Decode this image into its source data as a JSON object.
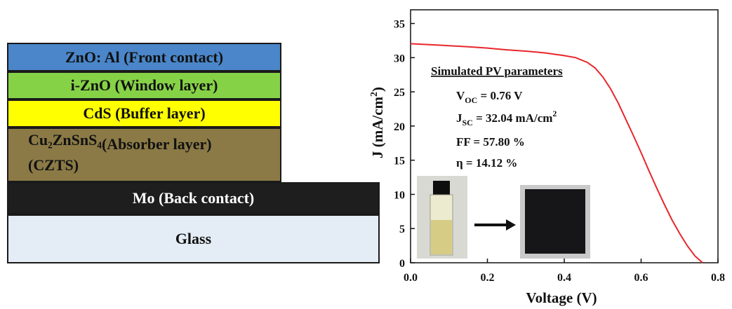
{
  "stack": {
    "front": "ZnO: Al (Front contact)",
    "window": "i-ZnO (Window layer)",
    "buffer": "CdS (Buffer layer)",
    "absorber_formula": "Cu₂ZnSnS₄",
    "absorber_label": "(Absorber layer)",
    "absorber_abbrev": "(CZTS)",
    "back": "Mo (Back contact)",
    "glass": "Glass"
  },
  "colors": {
    "front": "#4a86c9",
    "window": "#86d247",
    "buffer": "#ffff00",
    "absorber": "#8b7a46",
    "back": "#1e1e1e",
    "glass": "#e4edf6",
    "curve": "#e8262b"
  },
  "chart_data": {
    "type": "line",
    "xlabel": "Voltage (V)",
    "ylabel_main": "J (mA/cm",
    "ylabel_sup": "2",
    "ylabel_tail": ")",
    "xlim": [
      0.0,
      0.8
    ],
    "ylim": [
      0,
      37
    ],
    "xticks": [
      0.0,
      0.2,
      0.4,
      0.6,
      0.8
    ],
    "xtick_labels": [
      "0.0",
      "0.2",
      "0.4",
      "0.6",
      "0.8"
    ],
    "yticks": [
      0,
      5,
      10,
      15,
      20,
      25,
      30,
      35
    ],
    "ytick_labels": [
      "0",
      "5",
      "10",
      "15",
      "20",
      "25",
      "30",
      "35"
    ],
    "grid": false,
    "series": [
      {
        "x": [
          0.0,
          0.05,
          0.1,
          0.15,
          0.2,
          0.25,
          0.3,
          0.35,
          0.4,
          0.43,
          0.46,
          0.48,
          0.5,
          0.52,
          0.54,
          0.56,
          0.58,
          0.6,
          0.62,
          0.64,
          0.66,
          0.68,
          0.7,
          0.72,
          0.74,
          0.76
        ],
        "y": [
          32.04,
          31.9,
          31.75,
          31.6,
          31.4,
          31.15,
          30.95,
          30.7,
          30.3,
          30.0,
          29.3,
          28.5,
          27.2,
          25.5,
          23.4,
          21.0,
          18.6,
          16.1,
          13.5,
          11.0,
          8.6,
          6.3,
          4.3,
          2.5,
          1.0,
          0.0
        ]
      }
    ],
    "annotations": {
      "title": "Simulated PV parameters",
      "voc": {
        "main": "V",
        "sub": "OC",
        "rest": " = 0.76 V"
      },
      "jsc": {
        "main": "J",
        "sub": "SC",
        "rest": " = 32.04 mA/cm",
        "sup": "2"
      },
      "ff": "FF = 57.80 %",
      "eta": "η = 14.12 %"
    }
  }
}
